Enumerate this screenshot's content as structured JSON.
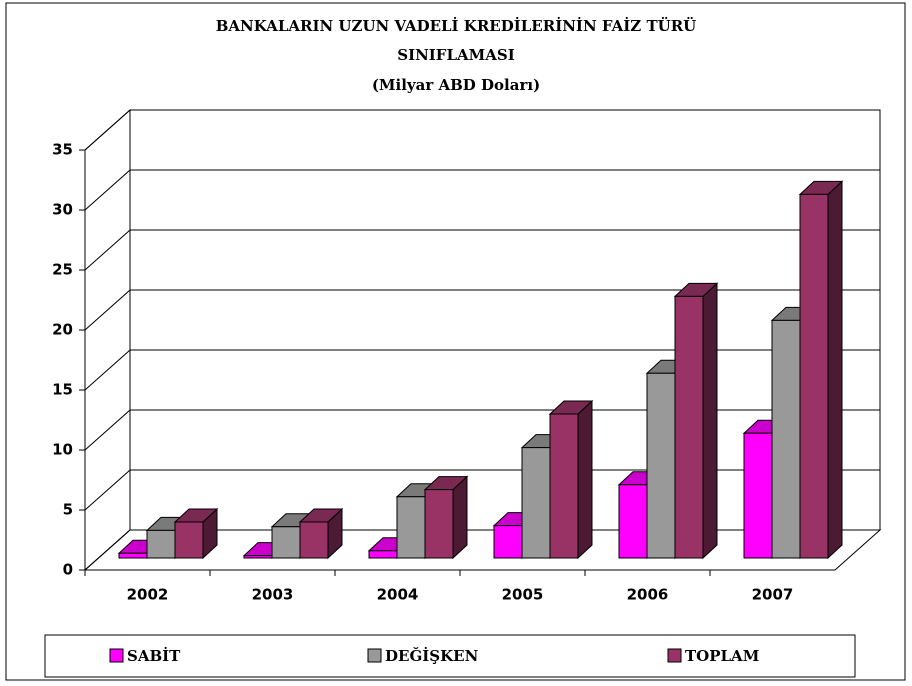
{
  "chart_data": {
    "type": "bar3d",
    "title": [
      "BANKALARIN UZUN VADELİ KREDİLERİNİN FAİZ TÜRÜ",
      "SINIFLAMASI",
      "(Milyar ABD Doları)"
    ],
    "categories": [
      "2002",
      "2003",
      "2004",
      "2005",
      "2006",
      "2007"
    ],
    "series": [
      {
        "name": "SABİT",
        "color": "#ff00ff",
        "values": [
          0.4,
          0.2,
          0.6,
          2.7,
          6.1,
          10.4
        ]
      },
      {
        "name": "DEĞİŞKEN",
        "color": "#999999",
        "values": [
          2.3,
          2.6,
          5.1,
          9.2,
          15.4,
          19.8
        ]
      },
      {
        "name": "TOPLAM",
        "color": "#993366",
        "values": [
          3.0,
          3.0,
          5.7,
          12.0,
          21.8,
          30.3
        ]
      }
    ],
    "ylim": [
      0,
      35
    ],
    "yticks": [
      0,
      5,
      10,
      15,
      20,
      25,
      30,
      35
    ],
    "grid": true,
    "legend": "bottom"
  }
}
